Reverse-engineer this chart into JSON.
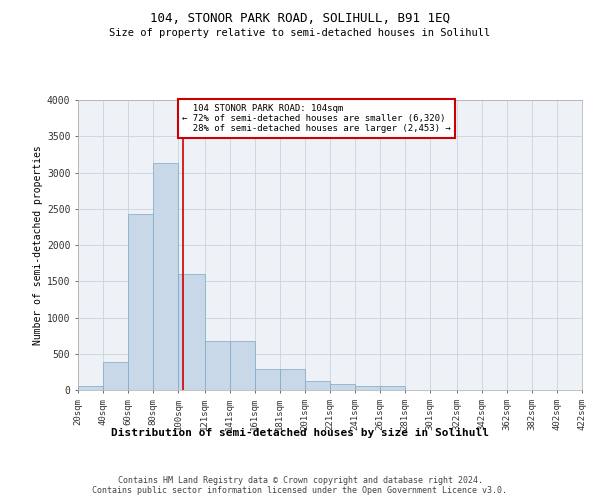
{
  "title": "104, STONOR PARK ROAD, SOLIHULL, B91 1EQ",
  "subtitle": "Size of property relative to semi-detached houses in Solihull",
  "xlabel": "Distribution of semi-detached houses by size in Solihull",
  "ylabel": "Number of semi-detached properties",
  "footer_line1": "Contains HM Land Registry data © Crown copyright and database right 2024.",
  "footer_line2": "Contains public sector information licensed under the Open Government Licence v3.0.",
  "property_size": 104,
  "property_label": "104 STONOR PARK ROAD: 104sqm",
  "pct_smaller": 72,
  "pct_larger": 28,
  "n_smaller": 6320,
  "n_larger": 2453,
  "bar_color": "#c8d8e8",
  "bar_edge_color": "#7aa8c8",
  "annotation_box_color": "#cc0000",
  "vline_color": "#cc0000",
  "grid_color": "#c8d4e0",
  "background_color": "#eef2f7",
  "ylim": [
    0,
    4000
  ],
  "yticks": [
    0,
    500,
    1000,
    1500,
    2000,
    2500,
    3000,
    3500,
    4000
  ],
  "bin_edges": [
    20,
    40,
    60,
    80,
    100,
    121,
    141,
    161,
    181,
    201,
    221,
    241,
    261,
    281,
    301,
    322,
    342,
    362,
    382,
    402,
    422
  ],
  "bin_counts": [
    50,
    380,
    2430,
    3130,
    1600,
    670,
    670,
    290,
    290,
    130,
    80,
    60,
    50,
    0,
    0,
    0,
    0,
    0,
    0,
    0
  ]
}
